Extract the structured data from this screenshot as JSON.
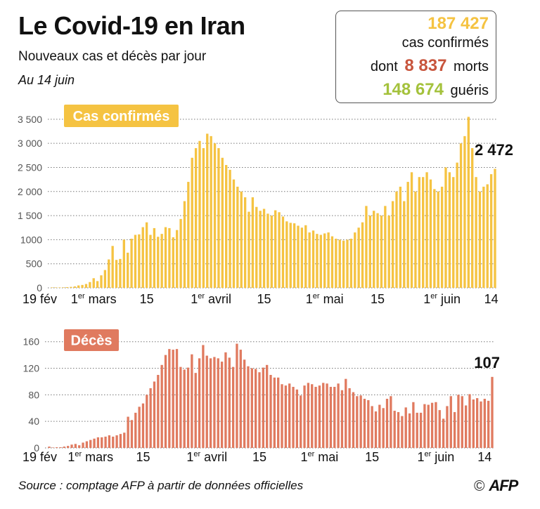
{
  "header": {
    "title": "Le Covid-19 en Iran",
    "subtitle": "Nouveaux cas et décès par jour",
    "date": "Au 14 juin"
  },
  "stats": {
    "confirmed_value": "187 427",
    "confirmed_label": "cas confirmés",
    "deaths_prefix": "dont",
    "deaths_value": "8 837",
    "deaths_label": "morts",
    "recovered_value": "148 674",
    "recovered_label": "guéris"
  },
  "footer": {
    "source": "Source : comptage AFP à partir de données officielles",
    "copyright": "©",
    "logo": "AFP"
  },
  "colors": {
    "cases": "#f5c342",
    "cases_label": "#e8a919",
    "deaths": "#e07a5f",
    "deaths_label": "#c8553d",
    "recovered": "#a4c23c"
  },
  "chart_data": [
    {
      "type": "bar",
      "title": "Cas confirmés",
      "ylim": [
        0,
        3600
      ],
      "yticks": [
        0,
        500,
        1000,
        1500,
        2000,
        2500,
        3000,
        3500
      ],
      "ytick_labels": [
        "0",
        "500",
        "1000",
        "1 500",
        "2 000",
        "2 500",
        "3 000",
        "3 500"
      ],
      "xticks": [
        {
          "label": "19 fév",
          "day": 0
        },
        {
          "label": "1er mars",
          "day": 11
        },
        {
          "label": "15",
          "day": 25
        },
        {
          "label": "1er avril",
          "day": 42
        },
        {
          "label": "15",
          "day": 56
        },
        {
          "label": "1er mai",
          "day": 72
        },
        {
          "label": "15",
          "day": 86
        },
        {
          "label": "1er juin",
          "day": 103
        },
        {
          "label": "14",
          "day": 116
        }
      ],
      "last_value_label": "2 472",
      "values": [
        2,
        0,
        3,
        10,
        15,
        20,
        30,
        50,
        60,
        80,
        120,
        200,
        140,
        260,
        370,
        590,
        870,
        580,
        600,
        1000,
        730,
        1020,
        1100,
        1110,
        1260,
        1360,
        1100,
        1240,
        1060,
        1120,
        1260,
        1240,
        1050,
        1200,
        1430,
        1800,
        2200,
        2700,
        2900,
        3050,
        2900,
        3200,
        3150,
        3000,
        2900,
        2700,
        2550,
        2450,
        2250,
        2100,
        2000,
        1880,
        1580,
        1880,
        1680,
        1600,
        1640,
        1540,
        1500,
        1610,
        1570,
        1480,
        1380,
        1350,
        1340,
        1290,
        1250,
        1300,
        1150,
        1190,
        1120,
        1100,
        1130,
        1150,
        1070,
        1020,
        1000,
        980,
        1000,
        1020,
        1150,
        1250,
        1360,
        1700,
        1500,
        1600,
        1550,
        1500,
        1700,
        1500,
        1800,
        2000,
        2100,
        1800,
        2200,
        2400,
        2000,
        2300,
        2300,
        2400,
        2250,
        2050,
        2000,
        2100,
        2500,
        2400,
        2300,
        2600,
        3000,
        3150,
        3550,
        2900,
        2300,
        2000,
        2100,
        2150,
        2360,
        2470
      ]
    },
    {
      "type": "bar",
      "title": "Décès",
      "ylim": [
        0,
        165
      ],
      "yticks": [
        0,
        40,
        80,
        120,
        160
      ],
      "ytick_labels": [
        "0",
        "40",
        "80",
        "120",
        "160"
      ],
      "xticks": [
        {
          "label": "19 fév",
          "day": 0
        },
        {
          "label": "1er mars",
          "day": 11
        },
        {
          "label": "15",
          "day": 25
        },
        {
          "label": "1er avril",
          "day": 42
        },
        {
          "label": "15",
          "day": 56
        },
        {
          "label": "1er mai",
          "day": 72
        },
        {
          "label": "15",
          "day": 86
        },
        {
          "label": "1er juin",
          "day": 103
        },
        {
          "label": "14",
          "day": 116
        }
      ],
      "last_value_label": "107",
      "values": [
        2,
        0,
        1,
        1,
        2,
        3,
        5,
        6,
        4,
        8,
        10,
        12,
        14,
        16,
        16,
        17,
        19,
        17,
        19,
        21,
        23,
        47,
        42,
        53,
        62,
        67,
        80,
        90,
        100,
        110,
        125,
        140,
        149,
        148,
        149,
        122,
        118,
        121,
        141,
        113,
        135,
        155,
        139,
        135,
        137,
        135,
        130,
        144,
        136,
        122,
        157,
        148,
        133,
        123,
        120,
        119,
        114,
        121,
        125,
        110,
        106,
        106,
        96,
        94,
        97,
        92,
        88,
        79,
        94,
        98,
        96,
        92,
        94,
        98,
        97,
        92,
        92,
        97,
        87,
        104,
        90,
        84,
        78,
        79,
        74,
        72,
        63,
        55,
        65,
        60,
        74,
        78,
        56,
        54,
        48,
        61,
        52,
        69,
        53,
        53,
        66,
        65,
        68,
        69,
        57,
        44,
        63,
        78,
        54,
        80,
        78,
        64,
        81,
        73,
        75,
        70,
        74,
        71,
        107
      ]
    }
  ]
}
